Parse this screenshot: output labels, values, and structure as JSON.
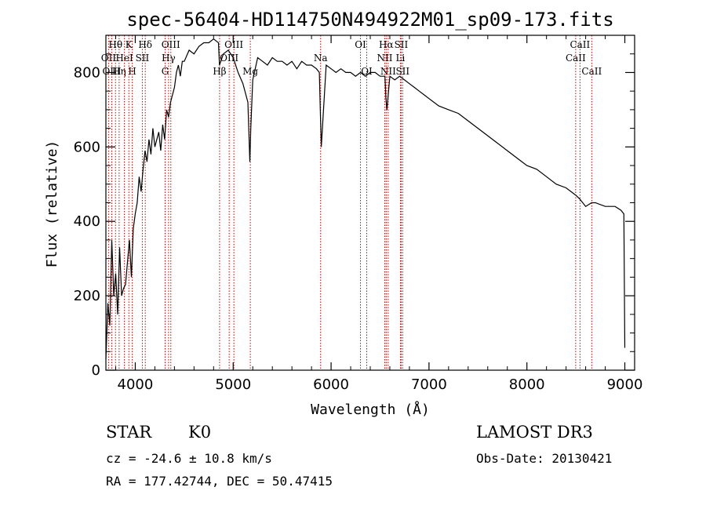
{
  "chart_data": {
    "type": "line",
    "title": "spec-56404-HD114750N494922M01_sp09-173.fits",
    "xlabel": "Wavelength (Å)",
    "ylabel": "Flux (relative)",
    "xlim": [
      3700,
      9100
    ],
    "ylim": [
      0,
      900
    ],
    "xticks": [
      4000,
      5000,
      6000,
      7000,
      8000,
      9000
    ],
    "yticks": [
      0,
      200,
      400,
      600,
      800
    ],
    "grid": false,
    "series": [
      {
        "x": [
          3700,
          3720,
          3740,
          3760,
          3780,
          3800,
          3820,
          3840,
          3860,
          3880,
          3900,
          3920,
          3940,
          3960,
          3980,
          4000,
          4020,
          4040,
          4060,
          4080,
          4100,
          4120,
          4140,
          4160,
          4180,
          4200,
          4220,
          4240,
          4260,
          4280,
          4300,
          4320,
          4340,
          4360,
          4380,
          4400,
          4420,
          4440,
          4460,
          4480,
          4500,
          4550,
          4600,
          4650,
          4700,
          4750,
          4800,
          4850,
          4860,
          4900,
          4950,
          5000,
          5050,
          5100,
          5150,
          5170,
          5180,
          5200,
          5250,
          5300,
          5350,
          5400,
          5450,
          5500,
          5550,
          5600,
          5650,
          5700,
          5750,
          5800,
          5850,
          5880,
          5890,
          5900,
          5950,
          6000,
          6050,
          6100,
          6150,
          6200,
          6250,
          6300,
          6350,
          6400,
          6450,
          6500,
          6550,
          6560,
          6570,
          6600,
          6650,
          6700,
          6750,
          6800,
          6850,
          6900,
          6950,
          7000,
          7100,
          7200,
          7300,
          7400,
          7500,
          7600,
          7700,
          7800,
          7900,
          8000,
          8100,
          8200,
          8300,
          8400,
          8500,
          8540,
          8600,
          8660,
          8700,
          8800,
          8900,
          8960,
          8990,
          9000
        ],
        "y": [
          30,
          180,
          120,
          350,
          200,
          260,
          150,
          330,
          200,
          220,
          230,
          290,
          350,
          250,
          380,
          420,
          450,
          520,
          480,
          540,
          590,
          560,
          620,
          580,
          650,
          600,
          620,
          640,
          590,
          660,
          620,
          700,
          680,
          720,
          740,
          760,
          800,
          820,
          790,
          830,
          830,
          860,
          850,
          870,
          880,
          880,
          890,
          880,
          820,
          850,
          860,
          840,
          800,
          770,
          720,
          560,
          650,
          780,
          840,
          830,
          820,
          840,
          830,
          830,
          820,
          830,
          810,
          830,
          820,
          820,
          810,
          800,
          700,
          600,
          820,
          810,
          800,
          810,
          800,
          800,
          790,
          800,
          790,
          800,
          800,
          790,
          790,
          730,
          700,
          790,
          780,
          790,
          780,
          770,
          760,
          750,
          740,
          730,
          710,
          700,
          690,
          670,
          650,
          630,
          610,
          590,
          570,
          550,
          540,
          520,
          500,
          490,
          470,
          460,
          440,
          450,
          450,
          440,
          440,
          430,
          420,
          60
        ]
      }
    ],
    "spectral_lines": [
      {
        "label": "Hθ",
        "wavelength": 3798,
        "row": 0
      },
      {
        "label": "K",
        "wavelength": 3934,
        "row": 0
      },
      {
        "label": "Hδ",
        "wavelength": 4102,
        "row": 0
      },
      {
        "label": "OII",
        "wavelength": 3727,
        "row": 1
      },
      {
        "label": "HeI",
        "wavelength": 3889,
        "row": 1
      },
      {
        "label": "SII",
        "wavelength": 4072,
        "row": 1
      },
      {
        "label": "OIII",
        "wavelength": 3760,
        "row": 2
      },
      {
        "label": "Hη",
        "wavelength": 3835,
        "row": 2
      },
      {
        "label": "H",
        "wavelength": 3969,
        "row": 2
      },
      {
        "label": "OIII",
        "wavelength": 4363,
        "row": 0
      },
      {
        "label": "Hγ",
        "wavelength": 4340,
        "row": 1
      },
      {
        "label": "G",
        "wavelength": 4305,
        "row": 2
      },
      {
        "label": "OIII",
        "wavelength": 5007,
        "row": 0
      },
      {
        "label": "OIII",
        "wavelength": 4959,
        "row": 1
      },
      {
        "label": "Hβ",
        "wavelength": 4861,
        "row": 2
      },
      {
        "label": "Mg",
        "wavelength": 5175,
        "row": 2
      },
      {
        "label": "Na",
        "wavelength": 5893,
        "row": 1
      },
      {
        "label": "OI",
        "wavelength": 6300,
        "row": 0
      },
      {
        "label": "OI",
        "wavelength": 6364,
        "row": 2
      },
      {
        "label": "Hα",
        "wavelength": 6563,
        "row": 0
      },
      {
        "label": "SII",
        "wavelength": 6716,
        "row": 0
      },
      {
        "label": "NII",
        "wavelength": 6548,
        "row": 1
      },
      {
        "label": "Li",
        "wavelength": 6708,
        "row": 1
      },
      {
        "label": "NII",
        "wavelength": 6583,
        "row": 2
      },
      {
        "label": "SII",
        "wavelength": 6731,
        "row": 2
      },
      {
        "label": "CaII",
        "wavelength": 8542,
        "row": 0
      },
      {
        "label": "CaII",
        "wavelength": 8498,
        "row": 1
      },
      {
        "label": "CaII",
        "wavelength": 8662,
        "row": 2
      }
    ]
  },
  "info": {
    "object_class": "STAR",
    "subclass": "K0",
    "survey": "LAMOST DR3",
    "redshift_line": "cz = -24.6 ± 10.8 km/s",
    "obs_date_line": "Obs-Date: 20130421",
    "coords_line": "RA = 177.42744, DEC =  50.47415"
  },
  "colors": {
    "spectrum": "#000000",
    "marker_lines": "#cc0000",
    "background": "#ffffff"
  }
}
